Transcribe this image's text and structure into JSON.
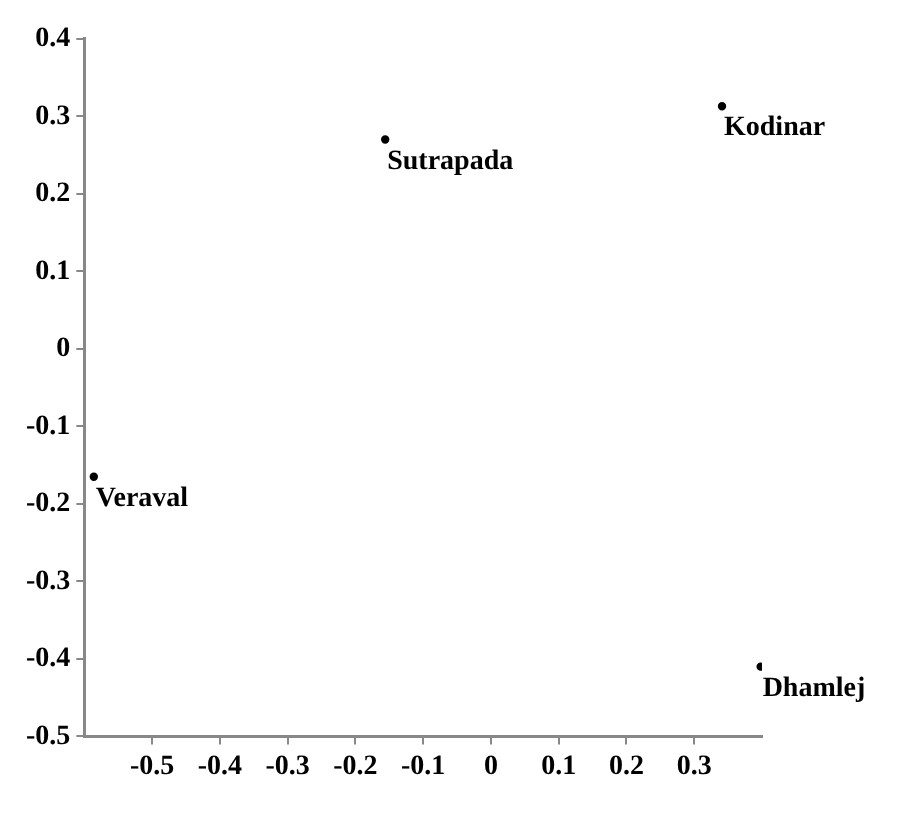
{
  "chart_data": {
    "type": "scatter",
    "x": [
      -0.156,
      0.341,
      -0.586,
      0.398
    ],
    "values": [
      0.27,
      0.313,
      -0.165,
      -0.41
    ],
    "color": "#000000",
    "marker": "circle",
    "grid": false,
    "legend": false,
    "xlim": [
      -0.6,
      0.4
    ],
    "xticks": [
      -0.5,
      -0.4,
      -0.3,
      -0.2,
      -0.1,
      0,
      0.1,
      0.2,
      0.3
    ],
    "ylim": [
      -0.5,
      0.4
    ],
    "yticks": [
      -0.5,
      -0.4,
      -0.3,
      -0.2,
      -0.1,
      0,
      0.1,
      0.2,
      0.3,
      0.4
    ],
    "annotations": [
      {
        "text": "Sutrapada",
        "x": -0.156,
        "y": 0.27
      },
      {
        "text": "Kodinar",
        "x": 0.341,
        "y": 0.313
      },
      {
        "text": "Veraval",
        "x": -0.586,
        "y": -0.165
      },
      {
        "text": "Dhamlej",
        "x": 0.398,
        "y": -0.41
      }
    ]
  }
}
